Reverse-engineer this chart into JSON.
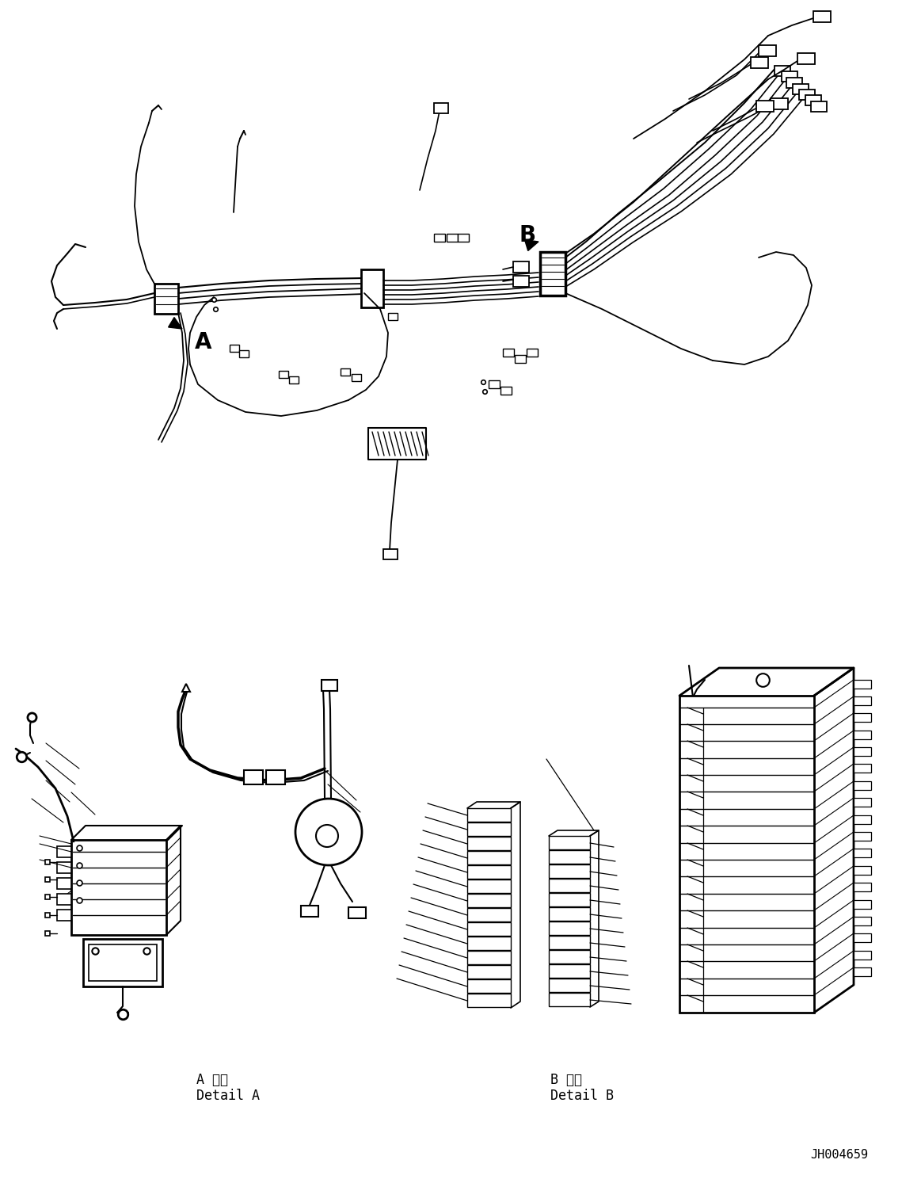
{
  "background_color": "#ffffff",
  "line_color": "#000000",
  "fig_width": 11.63,
  "fig_height": 14.88,
  "dpi": 100,
  "part_number": "JH004659",
  "label_A": "A",
  "label_B": "B",
  "detail_A_jp": "A 詳細",
  "detail_A_en": "Detail A",
  "detail_B_jp": "B 詳細",
  "detail_B_en": "Detail B"
}
